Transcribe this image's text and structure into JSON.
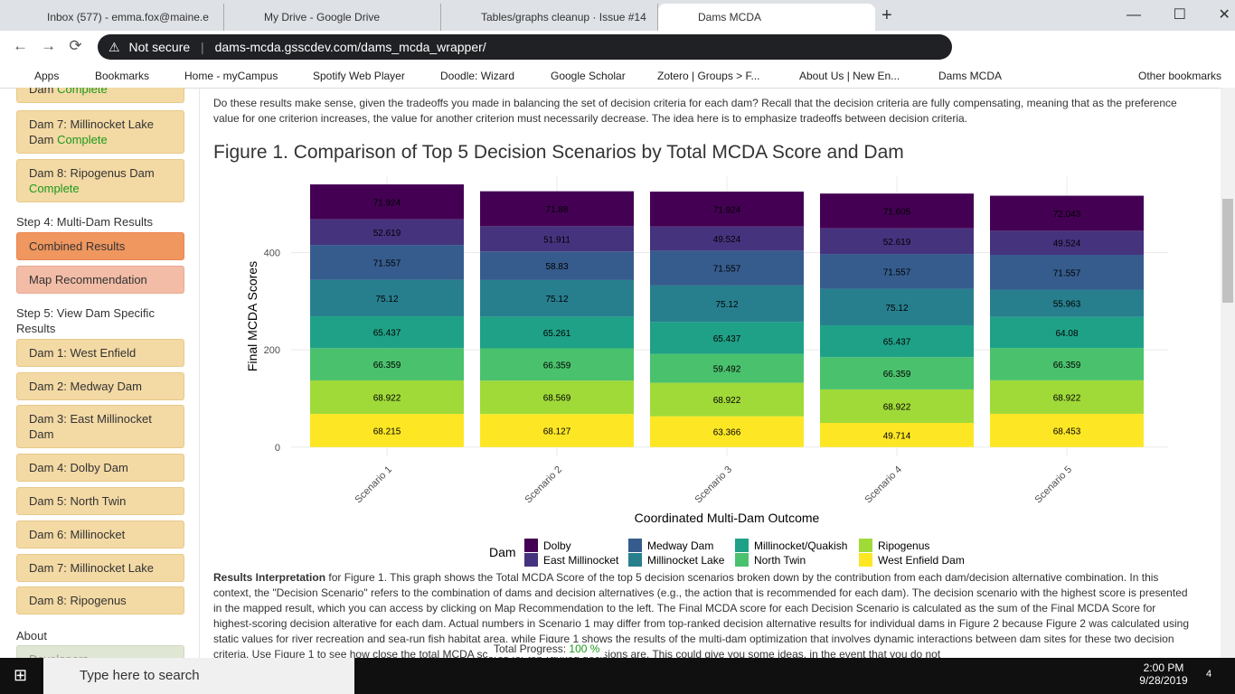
{
  "browser": {
    "tabs": [
      "Inbox (577) - emma.fox@maine.e",
      "My Drive - Google Drive",
      "Tables/graphs cleanup · Issue #14",
      "Dams MCDA"
    ],
    "security": "Not secure",
    "url": "dams-mcda.gsscdev.com/dams_mcda_wrapper/",
    "bookmarks": [
      "Apps",
      "Bookmarks",
      "Home - myCampus",
      "Spotify Web Player",
      "Doodle: Wizard",
      "Google Scholar",
      "Zotero | Groups > F...",
      "About Us | New En...",
      "Dams MCDA"
    ],
    "other_bookmarks": "Other bookmarks"
  },
  "sidebar": {
    "top_partial": {
      "label": "Dam",
      "status": "Complete"
    },
    "done": [
      {
        "label": "Dam 7: Millinocket Lake Dam",
        "status": "Complete"
      },
      {
        "label": "Dam 8: Ripogenus Dam",
        "status": "Complete"
      }
    ],
    "step4": "Step 4: Multi-Dam Results",
    "combined": "Combined Results",
    "map": "Map Recommendation",
    "step5": "Step 5: View Dam Specific Results",
    "dams": [
      "Dam 1: West Enfield",
      "Dam 2: Medway Dam",
      "Dam 3: East Millinocket Dam",
      "Dam 4: Dolby Dam",
      "Dam 5: North Twin",
      "Dam 6: Millinocket",
      "Dam 7: Millinocket Lake",
      "Dam 8: Ripogenus"
    ],
    "about": "About",
    "developers": "Developers"
  },
  "content": {
    "intro": "Do these results make sense, given the tradeoffs you made in balancing the set of decision criteria for each dam? Recall that the decision criteria are fully compensating, meaning that as the preference value for one criterion increases, the value for another criterion must necessarily decrease. The idea here is to emphasize tradeoffs between decision criteria.",
    "figure_title": "Figure 1. Comparison of Top 5 Decision Scenarios by Total MCDA Score and Dam",
    "interpretation_bold": "Results Interpretation",
    "interpretation": " for Figure 1. This graph shows the Total MCDA Score of the top 5 decision scenarios broken down by the contribution from each dam/decision alternative combination. In this context, the \"Decision Scenario\" refers to the combination of dams and decision alternatives (e.g., the action that is recommended for each dam). The decision scenario with the highest score is presented in the mapped result, which you can access by clicking on Map Recommendation to the left. The Final MCDA score for each Decision Scenario is calculated as the sum of the Final MCDA Score for highest-scoring decision alterative for each dam. Actual numbers in Scenario 1 may differ from top-ranked decision alternative results for individual dams in Figure 2 because Figure 2 was calculated using static values for river recreation and sea-run fish habitat area, while Figure 1 shows the results of the multi-dam optimization that involves dynamic interactions between dam sites for these two decision criteria. Use Figure 1 to see how close the total MCDA scores for top-ranked decisions are. This could give you some ideas, in the event that you do not",
    "progress_label": "Total Progress:",
    "progress_value": "100 %"
  },
  "taskbar": {
    "search": "Type here to search",
    "time": "2:00 PM",
    "date": "9/28/2019",
    "notifications": "4"
  },
  "chart_data": {
    "type": "stacked_bar",
    "x_label": "Coordinated Multi-Dam Outcome",
    "y_label": "Final MCDA Scores",
    "legend_title": "Dam",
    "categories": [
      "Scenario 1",
      "Scenario 2",
      "Scenario 3",
      "Scenario 4",
      "Scenario 5"
    ],
    "series": [
      {
        "name": "Dolby",
        "color": "#440154",
        "values": [
          71.924,
          71.88,
          71.924,
          71.605,
          72.043
        ]
      },
      {
        "name": "East Millinocket",
        "color": "#46337e",
        "values": [
          52.619,
          51.911,
          49.524,
          52.619,
          49.524
        ]
      },
      {
        "name": "Medway Dam",
        "color": "#365c8d",
        "values": [
          71.557,
          58.83,
          71.557,
          71.557,
          71.557
        ]
      },
      {
        "name": "Millinocket Lake",
        "color": "#277f8e",
        "values": [
          75.12,
          75.12,
          75.12,
          75.12,
          55.963
        ]
      },
      {
        "name": "Millinocket/Quakish",
        "color": "#1fa187",
        "values": [
          65.437,
          65.261,
          65.437,
          65.437,
          64.08
        ]
      },
      {
        "name": "North Twin",
        "color": "#4ac16d",
        "values": [
          66.359,
          66.359,
          59.492,
          66.359,
          66.359
        ]
      },
      {
        "name": "Ripogenus",
        "color": "#a0da39",
        "values": [
          68.922,
          68.569,
          68.922,
          68.922,
          68.922
        ]
      },
      {
        "name": "West Enfield Dam",
        "color": "#fde725",
        "values": [
          68.215,
          68.127,
          63.366,
          49.714,
          68.453
        ]
      }
    ],
    "ylim": [
      -19,
      557
    ],
    "yticks": [
      0,
      200,
      400
    ],
    "grid": true
  }
}
